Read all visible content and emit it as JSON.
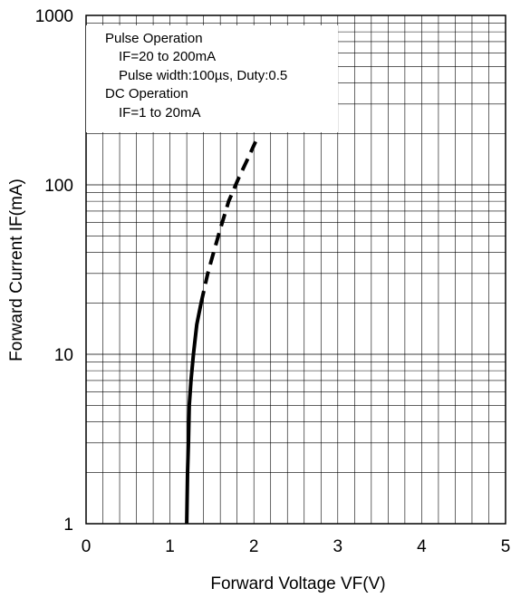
{
  "chart_data": {
    "type": "line",
    "title": "",
    "xlabel": "Forward Voltage VF(V)",
    "ylabel": "Forward Current IF(mA)",
    "xlim": [
      0,
      5
    ],
    "ylim": [
      1,
      1000
    ],
    "y_scale": "log",
    "grid": true,
    "x_ticks": [
      "0",
      "1",
      "2",
      "3",
      "4",
      "5"
    ],
    "y_ticks": [
      "1",
      "10",
      "100",
      "1000"
    ],
    "legend_position": "top-left",
    "legend": [
      "Pulse Operation",
      "IF=20 to 200mA",
      "Pulse width:100µs, Duty:0.5",
      "DC Operation",
      "IF=1 to 20mA"
    ],
    "series": [
      {
        "style": "solid",
        "x": [
          1.2,
          1.21,
          1.22,
          1.23,
          1.25,
          1.28,
          1.32,
          1.37
        ],
        "y": [
          1,
          2,
          3,
          5,
          7,
          10,
          15,
          20
        ]
      },
      {
        "style": "dashed",
        "x": [
          1.37,
          1.45,
          1.52,
          1.6,
          1.7,
          1.82,
          1.92,
          2.02
        ],
        "y": [
          20,
          30,
          40,
          55,
          80,
          110,
          140,
          180
        ]
      }
    ],
    "line_color": "#000000"
  }
}
